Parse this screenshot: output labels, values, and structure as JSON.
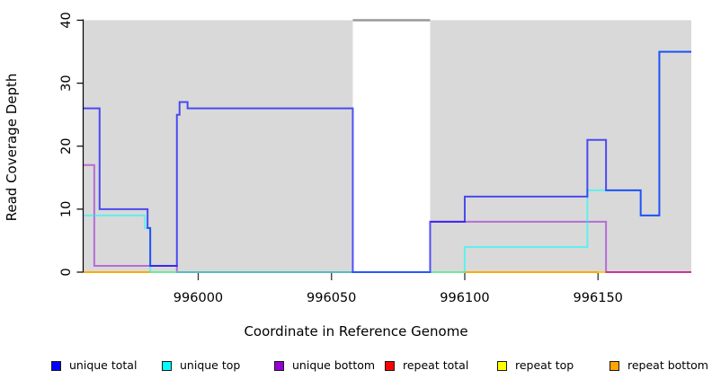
{
  "chart_data": {
    "type": "line",
    "subtype": "step-coverage",
    "title": "",
    "xlabel": "Coordinate in Reference Genome",
    "ylabel": "Read Coverage Depth",
    "xlim": [
      995957,
      996185
    ],
    "ylim": [
      0,
      40
    ],
    "x_ticks": [
      996000,
      996050,
      996100,
      996150
    ],
    "y_ticks": [
      0,
      10,
      20,
      30,
      40
    ],
    "grid": "off",
    "plot_background": "#d9d9d9",
    "page_background": "#ffffff",
    "masked_region": {
      "x1": 996058,
      "x2": 996087,
      "fill": "#ffffff",
      "clip_value": 40,
      "clip_color": "#999999",
      "note": "white band where coverage exceeds axis; gray marker drawn at y=40"
    },
    "series": [
      {
        "name": "repeat total",
        "color": "#FF0000",
        "opacity": 0.55,
        "runs": [
          [
            995957,
            996058,
            0
          ],
          [
            996087,
            996185,
            0
          ]
        ]
      },
      {
        "name": "repeat top",
        "color": "#FFFF00",
        "opacity": 0.65,
        "runs": [
          [
            995957,
            996058,
            0
          ],
          [
            996087,
            996153,
            0
          ]
        ]
      },
      {
        "name": "repeat bottom",
        "color": "#FFA500",
        "opacity": 0.9,
        "runs": [
          [
            995957,
            995982,
            0
          ],
          [
            996100,
            996150,
            0
          ]
        ]
      },
      {
        "name": "unique bottom",
        "color": "#9400D3",
        "opacity": 0.5,
        "runs": [
          [
            995957,
            995961,
            17
          ],
          [
            995961,
            995992,
            1
          ],
          [
            995992,
            996058,
            0
          ],
          [
            996087,
            996153,
            8
          ],
          [
            996153,
            996185,
            0
          ]
        ]
      },
      {
        "name": "unique top",
        "color": "#00FFFF",
        "opacity": 0.55,
        "runs": [
          [
            995957,
            995980,
            9
          ],
          [
            995980,
            995982,
            7
          ],
          [
            995982,
            996100,
            0
          ],
          [
            996100,
            996146,
            4
          ],
          [
            996146,
            996166,
            13
          ],
          [
            996166,
            996173,
            9
          ],
          [
            996173,
            996185,
            35
          ]
        ]
      },
      {
        "name": "unique total",
        "color": "#0000FF",
        "opacity": 0.66,
        "runs": [
          [
            995957,
            995963,
            26
          ],
          [
            995963,
            995981,
            10
          ],
          [
            995981,
            995982,
            7
          ],
          [
            995982,
            995992,
            1
          ],
          [
            995992,
            995993,
            25
          ],
          [
            995993,
            995996,
            27
          ],
          [
            995996,
            996058,
            26
          ],
          [
            996058,
            996087,
            0
          ],
          [
            996087,
            996100,
            8
          ],
          [
            996100,
            996146,
            12
          ],
          [
            996146,
            996153,
            21
          ],
          [
            996153,
            996166,
            13
          ],
          [
            996166,
            996173,
            9
          ],
          [
            996173,
            996185,
            35
          ]
        ]
      }
    ],
    "legend": [
      {
        "label": "unique total",
        "color": "#0000FF"
      },
      {
        "label": "unique top",
        "color": "#00FFFF"
      },
      {
        "label": "unique bottom",
        "color": "#9400D3"
      },
      {
        "label": "repeat total",
        "color": "#FF0000"
      },
      {
        "label": "repeat top",
        "color": "#FFFF00"
      },
      {
        "label": "repeat bottom",
        "color": "#FFA500"
      }
    ],
    "legend_position": "bottom"
  }
}
